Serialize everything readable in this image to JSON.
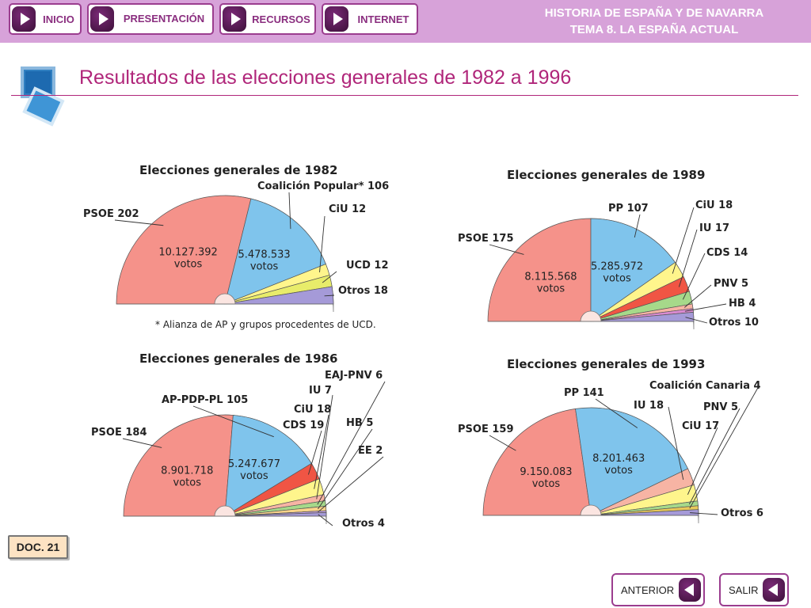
{
  "nav": {
    "inicio": "INICIO",
    "presentacion": "PRESENTACIÓN",
    "recursos": "RECURSOS",
    "internet": "INTERNET"
  },
  "header": {
    "line1": "HISTORIA DE ESPAÑA Y DE NAVARRA",
    "line2": "TEMA 8. LA ESPAÑA ACTUAL"
  },
  "page_title": "Resultados de las elecciones generales de 1982 a 1996",
  "doc_label": "DOC. 21",
  "footer": {
    "anterior": "ANTERIOR",
    "salir": "SALIR"
  },
  "colors": {
    "accent": "#b0267a",
    "topbar": "#d7a2d9",
    "psoe": "#f5928a",
    "right": "#7fc4ec",
    "ciu": "#fff58c",
    "ucd": "#f4f47a",
    "others": "#a59ad8",
    "red": "#f05544",
    "green": "#a6d98a",
    "pink": "#f7b4a4"
  },
  "chart_data": [
    {
      "type": "pie",
      "title": "Elecciones generales de 1982",
      "note": "* Alianza de AP y grupos procedentes de UCD.",
      "slices": [
        {
          "label": "PSOE 202",
          "name": "PSOE",
          "value": 202,
          "votes": "10.127.392",
          "votes_unit": "votos",
          "color": "#f5928a"
        },
        {
          "label": "Coalición Popular* 106",
          "name": "Coalición Popular*",
          "value": 106,
          "votes": "5.478.533",
          "votes_unit": "votos",
          "color": "#7fc4ec"
        },
        {
          "label": "CiU 12",
          "name": "CiU",
          "value": 12,
          "color": "#fff58c"
        },
        {
          "label": "UCD 12",
          "name": "UCD",
          "value": 12,
          "color": "#e8ec6a"
        },
        {
          "label": "Otros 18",
          "name": "Otros",
          "value": 18,
          "color": "#a59ad8"
        }
      ]
    },
    {
      "type": "pie",
      "title": "Elecciones generales de 1989",
      "slices": [
        {
          "label": "PSOE 175",
          "name": "PSOE",
          "value": 175,
          "votes": "8.115.568",
          "votes_unit": "votos",
          "color": "#f5928a"
        },
        {
          "label": "PP 107",
          "name": "PP",
          "value": 107,
          "votes": "5.285.972",
          "votes_unit": "votos",
          "color": "#7fc4ec"
        },
        {
          "label": "CiU 18",
          "name": "CiU",
          "value": 18,
          "color": "#fff58c"
        },
        {
          "label": "IU 17",
          "name": "IU",
          "value": 17,
          "color": "#f05544"
        },
        {
          "label": "CDS 14",
          "name": "CDS",
          "value": 14,
          "color": "#a6d98a"
        },
        {
          "label": "PNV 5",
          "name": "PNV",
          "value": 5,
          "color": "#f7b4a4"
        },
        {
          "label": "HB 4",
          "name": "HB",
          "value": 4,
          "color": "#d98ad0"
        },
        {
          "label": "Otros 10",
          "name": "Otros",
          "value": 10,
          "color": "#a59ad8"
        }
      ]
    },
    {
      "type": "pie",
      "title": "Elecciones generales de 1986",
      "slices": [
        {
          "label": "PSOE 184",
          "name": "PSOE",
          "value": 184,
          "votes": "8.901.718",
          "votes_unit": "votos",
          "color": "#f5928a"
        },
        {
          "label": "AP-PDP-PL 105",
          "name": "AP-PDP-PL",
          "value": 105,
          "votes": "5.247.677",
          "votes_unit": "votos",
          "color": "#7fc4ec"
        },
        {
          "label": "CDS 19",
          "name": "CDS",
          "value": 19,
          "color": "#f05544"
        },
        {
          "label": "CiU 18",
          "name": "CiU",
          "value": 18,
          "color": "#fff58c"
        },
        {
          "label": "IU 7",
          "name": "IU",
          "value": 7,
          "color": "#f7b4a4"
        },
        {
          "label": "EAJ-PNV 6",
          "name": "EAJ-PNV",
          "value": 6,
          "color": "#a6d98a"
        },
        {
          "label": "HB 5",
          "name": "HB",
          "value": 5,
          "color": "#fbd48a"
        },
        {
          "label": "EE 2",
          "name": "EE",
          "value": 2,
          "color": "#c9a5e6"
        },
        {
          "label": "Otros 4",
          "name": "Otros",
          "value": 4,
          "color": "#a59ad8"
        }
      ]
    },
    {
      "type": "pie",
      "title": "Elecciones generales de 1993",
      "slices": [
        {
          "label": "PSOE 159",
          "name": "PSOE",
          "value": 159,
          "votes": "9.150.083",
          "votes_unit": "votos",
          "color": "#f5928a"
        },
        {
          "label": "PP 141",
          "name": "PP",
          "value": 141,
          "votes": "8.201.463",
          "votes_unit": "votos",
          "color": "#7fc4ec"
        },
        {
          "label": "IU 18",
          "name": "IU",
          "value": 18,
          "color": "#f7b4a4"
        },
        {
          "label": "CiU 17",
          "name": "CiU",
          "value": 17,
          "color": "#fff58c"
        },
        {
          "label": "PNV 5",
          "name": "PNV",
          "value": 5,
          "color": "#a6d98a"
        },
        {
          "label": "Coalición Canaria 4",
          "name": "Coalición Canaria",
          "value": 4,
          "color": "#e8c85a"
        },
        {
          "label": "Otros 6",
          "name": "Otros",
          "value": 6,
          "color": "#a59ad8"
        }
      ]
    }
  ]
}
